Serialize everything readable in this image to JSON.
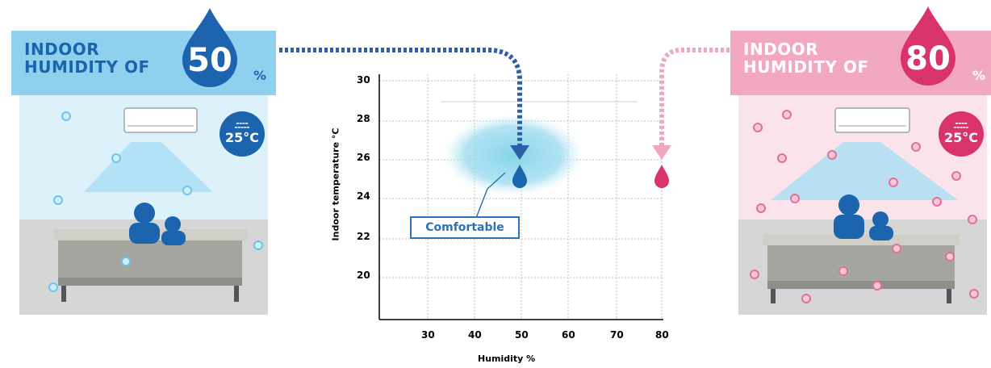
{
  "left_panel": {
    "header_line1": "INDOOR",
    "header_line2": "HUMIDITY OF",
    "humidity_value": "50",
    "percent_sign": "%",
    "badge_temp": "25°C",
    "color": "#1c64ae",
    "header_color": "#8fd0ef"
  },
  "right_panel": {
    "header_line1": "INDOOR",
    "header_line2": "HUMIDITY OF",
    "humidity_value": "80",
    "percent_sign": "%",
    "badge_temp": "25°C",
    "color": "#d9336c",
    "header_color": "#f2a8c1"
  },
  "chart": {
    "ylabel": "Indoor temperature °C",
    "xlabel": "Humidity %",
    "comfort_label": "Comfortable",
    "y_ticks": [
      "30",
      "28",
      "26",
      "24",
      "22",
      "20"
    ],
    "x_ticks": [
      "30",
      "40",
      "50",
      "60",
      "70",
      "80"
    ]
  }
}
